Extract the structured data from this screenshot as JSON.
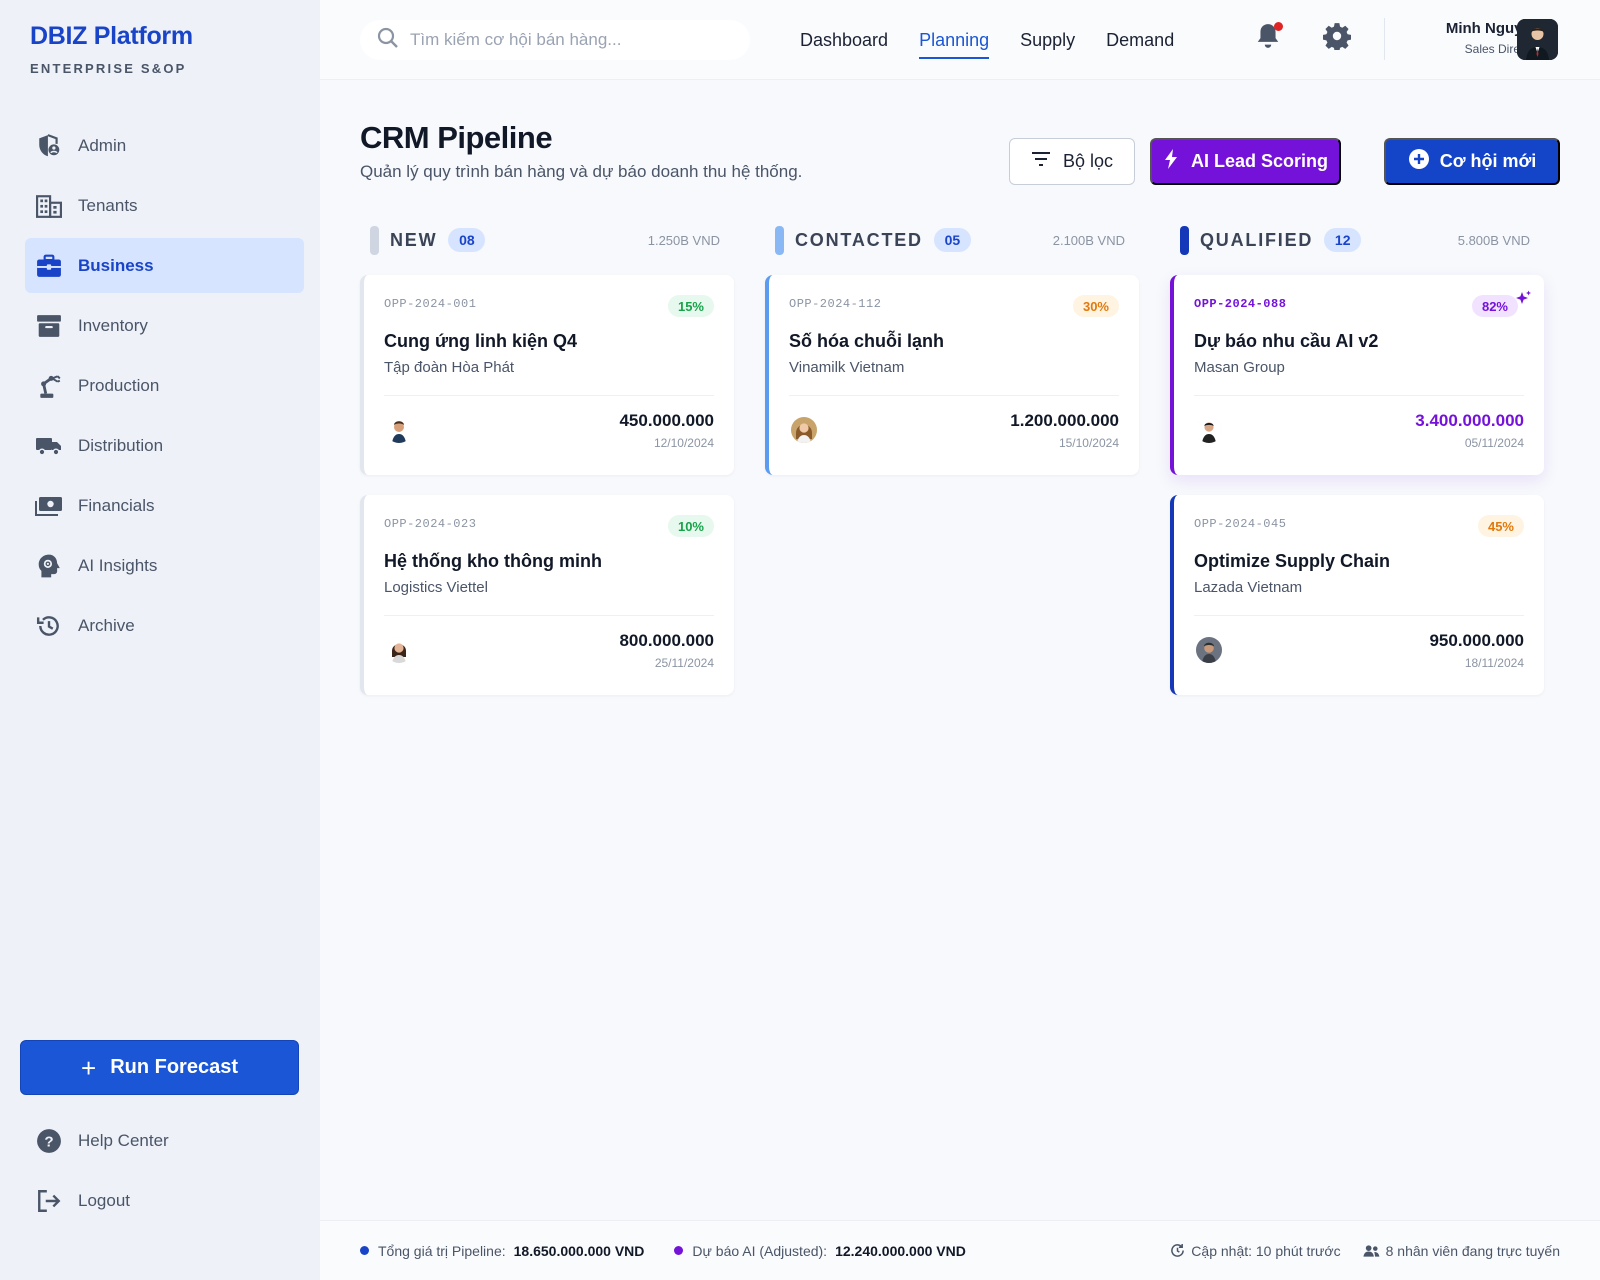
{
  "brand": {
    "title": "DBIZ Platform",
    "subtitle": "ENTERPRISE S&OP"
  },
  "sidebar": {
    "items": [
      {
        "label": "Admin",
        "icon": "admin-shield-icon"
      },
      {
        "label": "Tenants",
        "icon": "building-icon"
      },
      {
        "label": "Business",
        "icon": "briefcase-icon",
        "active": true
      },
      {
        "label": "Inventory",
        "icon": "archive-box-icon"
      },
      {
        "label": "Production",
        "icon": "robot-arm-icon"
      },
      {
        "label": "Distribution",
        "icon": "truck-icon"
      },
      {
        "label": "Financials",
        "icon": "banknote-icon"
      },
      {
        "label": "AI Insights",
        "icon": "ai-head-icon"
      },
      {
        "label": "Archive",
        "icon": "history-icon"
      }
    ],
    "run_forecast": "Run Forecast",
    "help": "Help Center",
    "logout": "Logout"
  },
  "topbar": {
    "search_placeholder": "Tìm kiếm cơ hội bán hàng...",
    "nav": [
      "Dashboard",
      "Planning",
      "Supply",
      "Demand"
    ],
    "active_nav": "Planning",
    "user_name": "Minh Nguyễn",
    "user_role": "Sales Director"
  },
  "page": {
    "title": "CRM Pipeline",
    "subtitle": "Quản lý quy trình bán hàng và dự báo doanh thu hệ thống.",
    "filter_label": "Bộ lọc",
    "ai_label": "AI Lead Scoring",
    "new_label": "Cơ hội mới"
  },
  "columns": [
    {
      "name": "NEW",
      "count": "08",
      "total": "1.250B VND",
      "color": "#cfd6e2",
      "cards": [
        {
          "id": "OPP-2024-001",
          "pct": "15%",
          "title": "Cung ứng linh kiện Q4",
          "company": "Tập đoàn Hòa Phát",
          "amount": "450.000.000",
          "date": "12/10/2024"
        },
        {
          "id": "OPP-2024-023",
          "pct": "10%",
          "title": "Hệ thống kho thông minh",
          "company": "Logistics Viettel",
          "amount": "800.000.000",
          "date": "25/11/2024"
        }
      ]
    },
    {
      "name": "CONTACTED",
      "count": "05",
      "total": "2.100B VND",
      "color": "#8ab8f5",
      "cards": [
        {
          "id": "OPP-2024-112",
          "pct": "30%",
          "title": "Số hóa chuỗi lạnh",
          "company": "Vinamilk Vietnam",
          "amount": "1.200.000.000",
          "date": "15/10/2024"
        }
      ]
    },
    {
      "name": "QUALIFIED",
      "count": "12",
      "total": "5.800B VND",
      "color": "#1438b8",
      "cards": [
        {
          "id": "OPP-2024-088",
          "pct": "82%",
          "title": "Dự báo nhu cầu AI v2",
          "company": "Masan Group",
          "amount": "3.400.000.000",
          "date": "05/11/2024"
        },
        {
          "id": "OPP-2024-045",
          "pct": "45%",
          "title": "Optimize Supply Chain",
          "company": "Lazada Vietnam",
          "amount": "950.000.000",
          "date": "18/11/2024"
        }
      ]
    }
  ],
  "footer": {
    "pipeline_label": "Tổng giá trị Pipeline:",
    "pipeline_value": "18.650.000.000 VND",
    "ai_label": "Dự báo AI (Adjusted):",
    "ai_value": "12.240.000.000 VND",
    "updated": "Cập nhật: 10 phút trước",
    "online": "8 nhân viên đang trực tuyến"
  },
  "colors": {
    "primary": "#1a56d6",
    "ai_purple": "#7412d9",
    "navy": "#1438b8"
  }
}
